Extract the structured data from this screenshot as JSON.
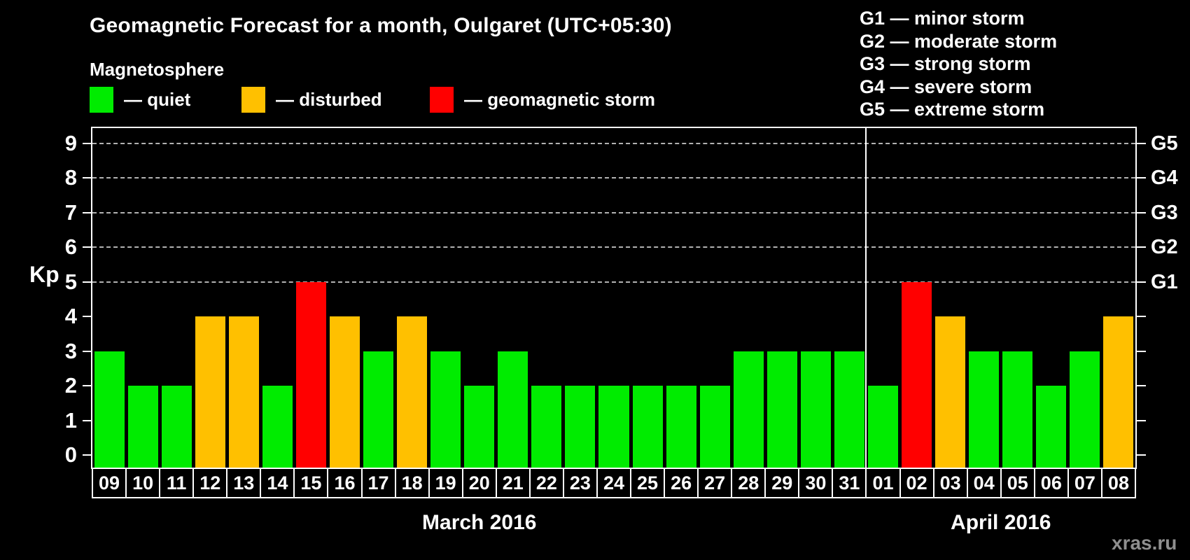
{
  "header": {
    "title": "Geomagnetic Forecast for a month, Oulgaret (UTC+05:30)",
    "subtitle": "Magnetosphere"
  },
  "legend": {
    "items": [
      {
        "label": "— quiet",
        "status": "quiet",
        "color": "#00ec00"
      },
      {
        "label": "— disturbed",
        "status": "disturbed",
        "color": "#ffc000"
      },
      {
        "label": "— geomagnetic storm",
        "status": "storm",
        "color": "#ff0000"
      }
    ]
  },
  "g_legend": {
    "items": [
      "G1 — minor storm",
      "G2 — moderate storm",
      "G3 — strong storm",
      "G4 — severe storm",
      "G5 — extreme storm"
    ]
  },
  "chart_data": {
    "type": "bar",
    "title": "Geomagnetic Forecast for a month, Oulgaret (UTC+05:30)",
    "ylabel": "Kp",
    "ylim": [
      0,
      9
    ],
    "yticks": [
      0,
      1,
      2,
      3,
      4,
      5,
      6,
      7,
      8,
      9
    ],
    "grid": true,
    "grid_levels": [
      5,
      6,
      7,
      8,
      9
    ],
    "right_axis": [
      {
        "level": 5,
        "label": "G1"
      },
      {
        "level": 6,
        "label": "G2"
      },
      {
        "level": 7,
        "label": "G3"
      },
      {
        "level": 8,
        "label": "G4"
      },
      {
        "level": 9,
        "label": "G5"
      }
    ],
    "categories": [
      "09",
      "10",
      "11",
      "12",
      "13",
      "14",
      "15",
      "16",
      "17",
      "18",
      "19",
      "20",
      "21",
      "22",
      "23",
      "24",
      "25",
      "26",
      "27",
      "28",
      "29",
      "30",
      "31",
      "01",
      "02",
      "03",
      "04",
      "05",
      "06",
      "07",
      "08"
    ],
    "values": [
      3,
      2,
      2,
      4,
      4,
      2,
      5,
      4,
      3,
      4,
      3,
      2,
      3,
      2,
      2,
      2,
      2,
      2,
      2,
      3,
      3,
      3,
      3,
      2,
      5,
      4,
      3,
      3,
      2,
      3,
      4
    ],
    "statuses": [
      "quiet",
      "quiet",
      "quiet",
      "disturbed",
      "disturbed",
      "quiet",
      "storm",
      "disturbed",
      "quiet",
      "disturbed",
      "quiet",
      "quiet",
      "quiet",
      "quiet",
      "quiet",
      "quiet",
      "quiet",
      "quiet",
      "quiet",
      "quiet",
      "quiet",
      "quiet",
      "quiet",
      "quiet",
      "storm",
      "disturbed",
      "quiet",
      "quiet",
      "quiet",
      "quiet",
      "disturbed"
    ],
    "months": [
      {
        "label": "March 2016",
        "start": 0,
        "count": 23
      },
      {
        "label": "April 2016",
        "start": 23,
        "count": 8
      }
    ],
    "colors": {
      "quiet": "#00ec00",
      "disturbed": "#ffc000",
      "storm": "#ff0000"
    },
    "legend_position": "top"
  },
  "watermark": "xras.ru"
}
